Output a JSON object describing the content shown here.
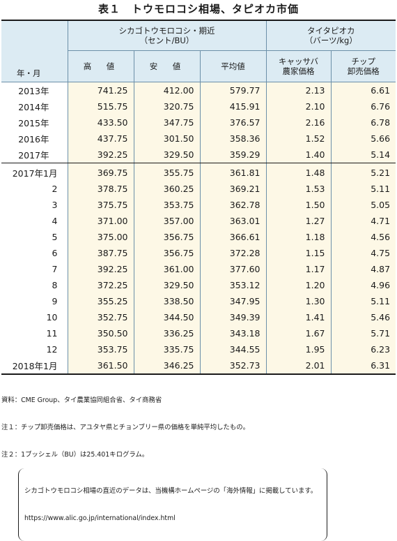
{
  "title": "表１　トウモロコシ相場、タピオカ市価",
  "header": {
    "row_label": "年・月",
    "group1": {
      "line1": "シカゴトウモロコシ・期近",
      "line2": "（セント/BU）"
    },
    "group2": {
      "line1": "タイタピオカ",
      "line2": "（バーツ/kg）"
    },
    "cols": {
      "high": "高　値",
      "low": "安　値",
      "avg": "平均値",
      "cassava_line1": "キャッサバ",
      "cassava_line2": "農家価格",
      "chip_line1": "チップ",
      "chip_line2": "卸売価格"
    }
  },
  "annual_rows": [
    {
      "label": "2013年",
      "high": "741.25",
      "low": "412.00",
      "avg": "579.77",
      "cassava": "2.13",
      "chip": "6.61"
    },
    {
      "label": "2014年",
      "high": "515.75",
      "low": "320.75",
      "avg": "415.91",
      "cassava": "2.10",
      "chip": "6.76"
    },
    {
      "label": "2015年",
      "high": "433.50",
      "low": "347.75",
      "avg": "376.57",
      "cassava": "2.16",
      "chip": "6.78"
    },
    {
      "label": "2016年",
      "high": "437.75",
      "low": "301.50",
      "avg": "358.36",
      "cassava": "1.52",
      "chip": "5.66"
    },
    {
      "label": "2017年",
      "high": "392.25",
      "low": "329.50",
      "avg": "359.29",
      "cassava": "1.40",
      "chip": "5.14"
    }
  ],
  "monthly_rows": [
    {
      "label": "2017年1月",
      "high": "369.75",
      "low": "355.75",
      "avg": "361.81",
      "cassava": "1.48",
      "chip": "5.21"
    },
    {
      "label": "2",
      "high": "378.75",
      "low": "360.25",
      "avg": "369.21",
      "cassava": "1.53",
      "chip": "5.11"
    },
    {
      "label": "3",
      "high": "375.75",
      "low": "353.75",
      "avg": "362.78",
      "cassava": "1.50",
      "chip": "5.05"
    },
    {
      "label": "4",
      "high": "371.00",
      "low": "357.00",
      "avg": "363.01",
      "cassava": "1.27",
      "chip": "4.71"
    },
    {
      "label": "5",
      "high": "375.00",
      "low": "356.75",
      "avg": "366.61",
      "cassava": "1.18",
      "chip": "4.56"
    },
    {
      "label": "6",
      "high": "387.75",
      "low": "356.75",
      "avg": "372.28",
      "cassava": "1.15",
      "chip": "4.75"
    },
    {
      "label": "7",
      "high": "392.25",
      "low": "361.00",
      "avg": "377.60",
      "cassava": "1.17",
      "chip": "4.87"
    },
    {
      "label": "8",
      "high": "372.25",
      "low": "329.50",
      "avg": "353.12",
      "cassava": "1.20",
      "chip": "4.96"
    },
    {
      "label": "9",
      "high": "355.25",
      "low": "338.50",
      "avg": "347.95",
      "cassava": "1.30",
      "chip": "5.11"
    },
    {
      "label": "10",
      "high": "352.75",
      "low": "344.50",
      "avg": "349.39",
      "cassava": "1.41",
      "chip": "5.46"
    },
    {
      "label": "11",
      "high": "350.50",
      "low": "336.25",
      "avg": "343.18",
      "cassava": "1.67",
      "chip": "5.71"
    },
    {
      "label": "12",
      "high": "353.75",
      "low": "335.75",
      "avg": "344.55",
      "cassava": "1.95",
      "chip": "6.23"
    },
    {
      "label": "2018年1月",
      "high": "361.50",
      "low": "346.25",
      "avg": "352.73",
      "cassava": "2.01",
      "chip": "6.31"
    }
  ],
  "notes": {
    "source": "資料：CME Group、タイ農業協同組合省、タイ商務省",
    "note1": "注１：チップ卸売価格は、アユタヤ県とチョンブリー県の価格を単純平均したもの。",
    "note2": "注２：1ブッシェル（BU）は25.401キログラム。",
    "paren_line1": "シカゴトウモロコシ相場の直近のデータは、当機構ホームページの「海外情報」に掲載しています。",
    "paren_line2": "https://www.alic.go.jp/international/index.html"
  }
}
